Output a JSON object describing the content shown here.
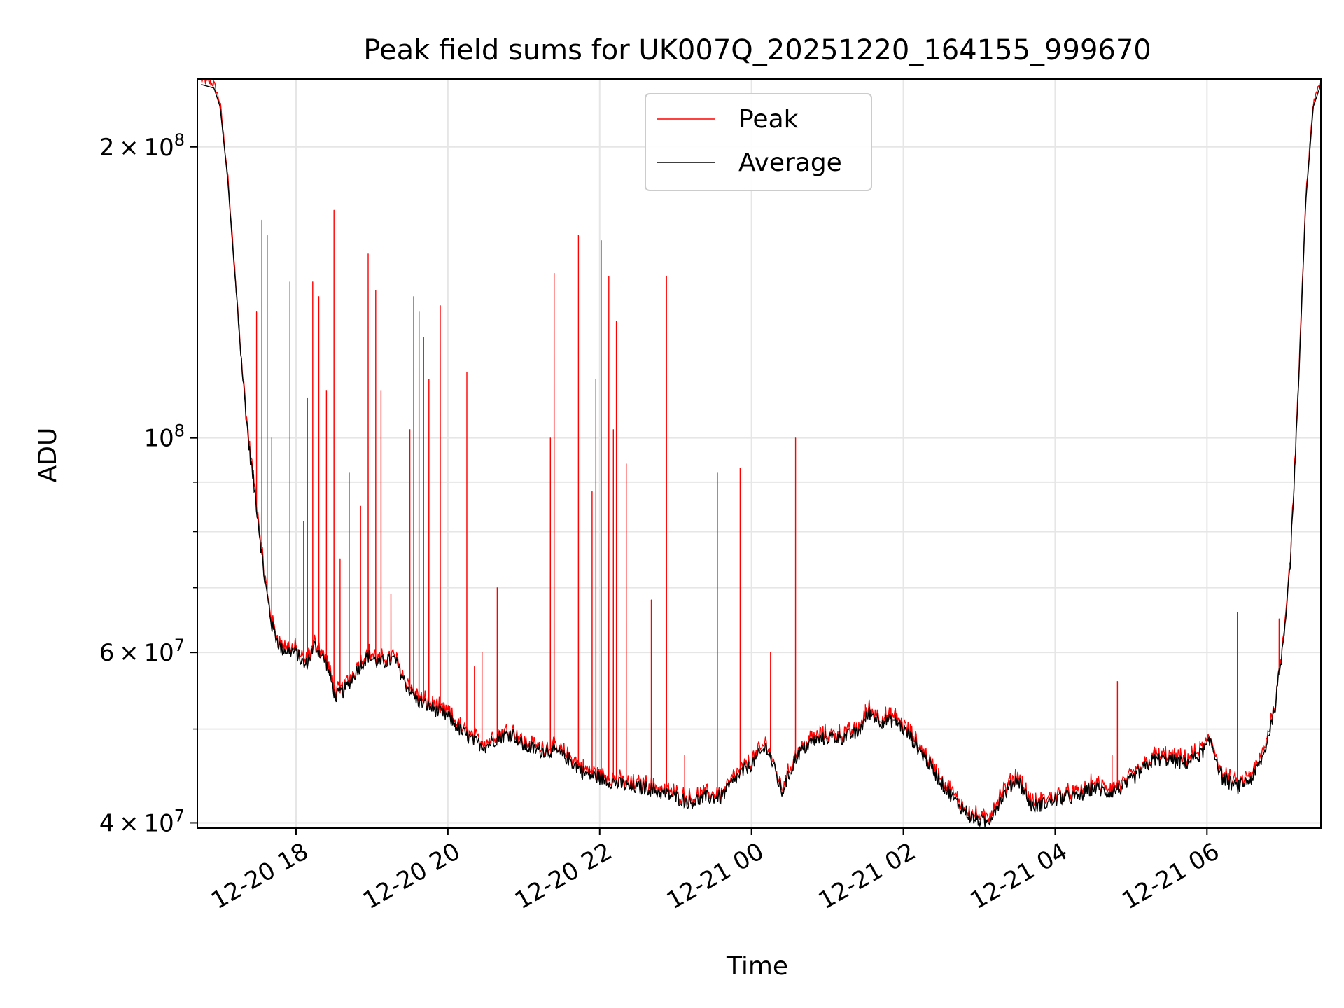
{
  "chart_data": {
    "type": "line",
    "title": "Peak field sums for UK007Q_20251220_164155_999670",
    "xlabel": "Time",
    "ylabel": "ADU",
    "yscale": "log",
    "grid": true,
    "legend_position": "top-center",
    "ylim": [
      39500000,
      235000000
    ],
    "xlim_hours": [
      16.7,
      31.5
    ],
    "x_ticks": [
      {
        "label": "12-20 18",
        "hour": 18
      },
      {
        "label": "12-20 20",
        "hour": 20
      },
      {
        "label": "12-20 22",
        "hour": 22
      },
      {
        "label": "12-21 00",
        "hour": 24
      },
      {
        "label": "12-21 02",
        "hour": 26
      },
      {
        "label": "12-21 04",
        "hour": 28
      },
      {
        "label": "12-21 06",
        "hour": 30
      }
    ],
    "y_ticks": [
      {
        "mant": "2",
        "exp": "8",
        "value": 200000000
      },
      {
        "mant": "",
        "exp": "8",
        "value": 100000000
      },
      {
        "mant": "6",
        "exp": "7",
        "value": 60000000
      },
      {
        "mant": "4",
        "exp": "7",
        "value": 40000000
      }
    ],
    "y_minor_gridlines": [
      50000000,
      70000000,
      80000000,
      90000000
    ],
    "series": [
      {
        "name": "Peak",
        "color": "#ff0000",
        "base_values_from": "Average",
        "spikes": [
          [
            17.48,
            135000000
          ],
          [
            17.55,
            168000000
          ],
          [
            17.62,
            162000000
          ],
          [
            17.68,
            100000000
          ],
          [
            17.92,
            145000000
          ],
          [
            18.1,
            82000000
          ],
          [
            18.15,
            110000000
          ],
          [
            18.22,
            145000000
          ],
          [
            18.3,
            140000000
          ],
          [
            18.4,
            112000000
          ],
          [
            18.5,
            172000000
          ],
          [
            18.58,
            75000000
          ],
          [
            18.7,
            92000000
          ],
          [
            18.85,
            85000000
          ],
          [
            18.95,
            155000000
          ],
          [
            19.05,
            142000000
          ],
          [
            19.12,
            112000000
          ],
          [
            19.25,
            69000000
          ],
          [
            19.5,
            102000000
          ],
          [
            19.55,
            140000000
          ],
          [
            19.62,
            135000000
          ],
          [
            19.68,
            127000000
          ],
          [
            19.75,
            115000000
          ],
          [
            19.9,
            137000000
          ],
          [
            20.25,
            117000000
          ],
          [
            20.35,
            58000000
          ],
          [
            20.45,
            60000000
          ],
          [
            20.65,
            70000000
          ],
          [
            21.35,
            100000000
          ],
          [
            21.4,
            148000000
          ],
          [
            21.65,
            46000000
          ],
          [
            21.72,
            162000000
          ],
          [
            21.9,
            88000000
          ],
          [
            21.95,
            115000000
          ],
          [
            22.02,
            160000000
          ],
          [
            22.12,
            147000000
          ],
          [
            22.18,
            102000000
          ],
          [
            22.22,
            132000000
          ],
          [
            22.35,
            94000000
          ],
          [
            22.68,
            68000000
          ],
          [
            22.88,
            147000000
          ],
          [
            23.12,
            47000000
          ],
          [
            23.55,
            92000000
          ],
          [
            23.85,
            93000000
          ],
          [
            24.25,
            60000000
          ],
          [
            24.58,
            100000000
          ],
          [
            25.5,
            53000000
          ],
          [
            25.8,
            52000000
          ],
          [
            28.75,
            47000000
          ],
          [
            28.82,
            56000000
          ],
          [
            30.4,
            66000000
          ],
          [
            30.95,
            65000000
          ]
        ]
      },
      {
        "name": "Average",
        "color": "#000000",
        "points": [
          [
            16.75,
            232000000
          ],
          [
            16.92,
            230000000
          ],
          [
            17.0,
            220000000
          ],
          [
            17.1,
            185000000
          ],
          [
            17.2,
            145000000
          ],
          [
            17.3,
            115000000
          ],
          [
            17.38,
            98000000
          ],
          [
            17.48,
            85000000
          ],
          [
            17.58,
            72000000
          ],
          [
            17.68,
            64000000
          ],
          [
            17.8,
            60500000
          ],
          [
            18.0,
            60000000
          ],
          [
            18.12,
            58000000
          ],
          [
            18.25,
            61000000
          ],
          [
            18.4,
            58500000
          ],
          [
            18.52,
            54000000
          ],
          [
            18.65,
            55000000
          ],
          [
            18.8,
            57500000
          ],
          [
            18.95,
            59500000
          ],
          [
            19.1,
            58500000
          ],
          [
            19.3,
            59000000
          ],
          [
            19.45,
            55500000
          ],
          [
            19.6,
            53500000
          ],
          [
            19.8,
            52500000
          ],
          [
            20.0,
            51500000
          ],
          [
            20.2,
            49500000
          ],
          [
            20.35,
            48500000
          ],
          [
            20.5,
            48000000
          ],
          [
            20.65,
            49000000
          ],
          [
            20.85,
            49500000
          ],
          [
            21.0,
            48000000
          ],
          [
            21.2,
            47500000
          ],
          [
            21.4,
            47500000
          ],
          [
            21.6,
            46500000
          ],
          [
            21.8,
            45000000
          ],
          [
            22.0,
            44500000
          ],
          [
            22.2,
            44000000
          ],
          [
            22.4,
            43500000
          ],
          [
            22.6,
            43500000
          ],
          [
            22.8,
            43000000
          ],
          [
            23.0,
            42500000
          ],
          [
            23.2,
            42000000
          ],
          [
            23.4,
            42500000
          ],
          [
            23.6,
            42500000
          ],
          [
            23.8,
            44500000
          ],
          [
            24.0,
            46000000
          ],
          [
            24.2,
            48000000
          ],
          [
            24.4,
            43000000
          ],
          [
            24.6,
            47000000
          ],
          [
            24.8,
            48500000
          ],
          [
            25.0,
            49000000
          ],
          [
            25.2,
            49000000
          ],
          [
            25.4,
            49500000
          ],
          [
            25.55,
            52000000
          ],
          [
            25.7,
            51000000
          ],
          [
            25.9,
            51000000
          ],
          [
            26.1,
            49000000
          ],
          [
            26.3,
            46500000
          ],
          [
            26.5,
            44000000
          ],
          [
            26.7,
            42000000
          ],
          [
            26.9,
            40500000
          ],
          [
            27.1,
            40000000
          ],
          [
            27.3,
            42500000
          ],
          [
            27.5,
            44500000
          ],
          [
            27.7,
            41500000
          ],
          [
            27.9,
            42000000
          ],
          [
            28.1,
            42500000
          ],
          [
            28.3,
            42500000
          ],
          [
            28.5,
            43500000
          ],
          [
            28.7,
            43000000
          ],
          [
            28.9,
            43500000
          ],
          [
            29.1,
            45000000
          ],
          [
            29.3,
            46500000
          ],
          [
            29.5,
            46500000
          ],
          [
            29.7,
            46000000
          ],
          [
            29.9,
            47000000
          ],
          [
            30.05,
            48500000
          ],
          [
            30.2,
            44500000
          ],
          [
            30.4,
            43500000
          ],
          [
            30.6,
            44500000
          ],
          [
            30.75,
            47000000
          ],
          [
            30.9,
            53000000
          ],
          [
            31.0,
            61000000
          ],
          [
            31.1,
            75000000
          ],
          [
            31.2,
            110000000
          ],
          [
            31.3,
            175000000
          ],
          [
            31.4,
            220000000
          ],
          [
            31.5,
            232000000
          ]
        ]
      }
    ]
  }
}
